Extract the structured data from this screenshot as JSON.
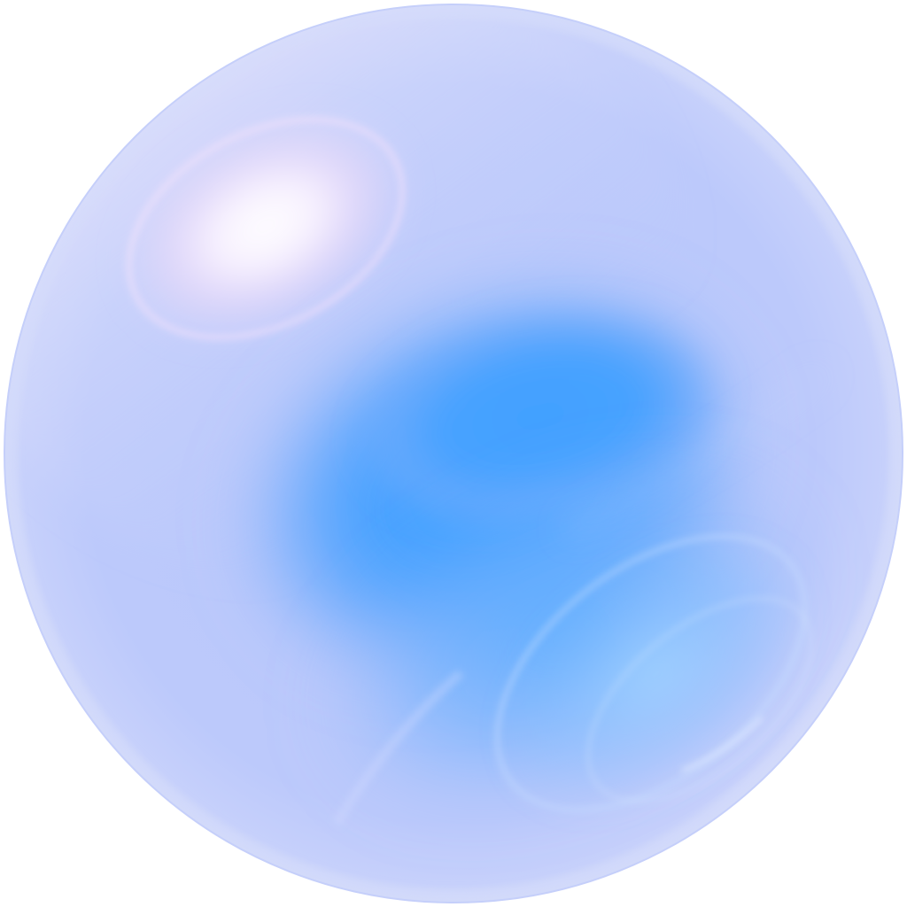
{
  "image": {
    "subject": "bubble-sphere",
    "colors": {
      "background": "#ffffff",
      "rim": "#c9d2fb",
      "body": "#b4c4fa",
      "core": "#42a1ff",
      "highlight": "#fbf4ff",
      "highlight_tint": "#f2d9f8",
      "reflection": "#9fd3ff"
    }
  }
}
